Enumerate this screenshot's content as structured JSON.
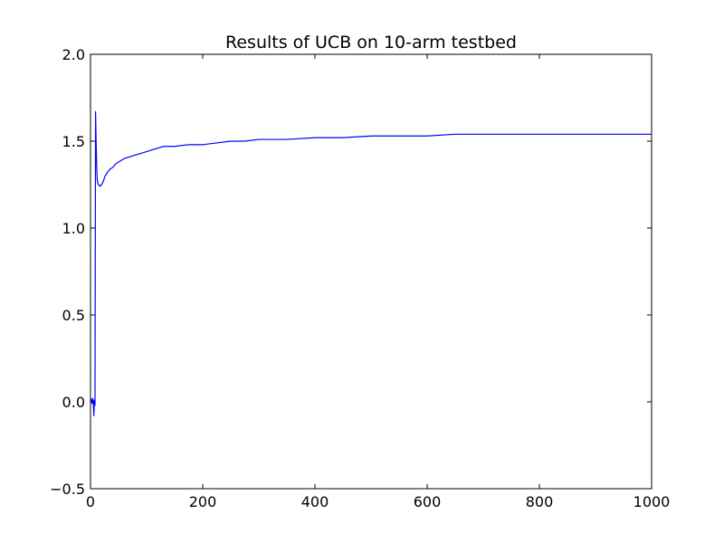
{
  "chart_data": {
    "type": "line",
    "title": "Results of UCB on 10-arm testbed",
    "xlabel": "",
    "ylabel": "",
    "xlim": [
      0,
      1000
    ],
    "ylim": [
      -0.5,
      2.0
    ],
    "x_ticks": [
      0,
      200,
      400,
      600,
      800,
      1000
    ],
    "y_ticks": [
      -0.5,
      0.0,
      0.5,
      1.0,
      1.5,
      2.0
    ],
    "x_tick_labels": [
      "0",
      "200",
      "400",
      "600",
      "800",
      "1000"
    ],
    "y_tick_labels": [
      "−0.5",
      "0.0",
      "0.5",
      "1.0",
      "1.5",
      "2.0"
    ],
    "grid": false,
    "legend": "none",
    "series": [
      {
        "color": "#0000ff",
        "x": [
          1,
          2,
          3,
          4,
          5,
          6,
          7,
          8,
          9,
          10,
          11,
          12,
          13,
          14,
          15,
          17,
          20,
          23,
          26,
          30,
          35,
          40,
          45,
          50,
          60,
          70,
          80,
          90,
          100,
          110,
          120,
          130,
          140,
          150,
          175,
          200,
          225,
          250,
          275,
          300,
          350,
          400,
          450,
          500,
          550,
          600,
          650,
          700,
          750,
          800,
          850,
          900,
          950,
          1000
        ],
        "y": [
          0.02,
          0.0,
          -0.01,
          0.02,
          0.0,
          -0.08,
          0.01,
          -0.02,
          1.67,
          1.5,
          1.35,
          1.28,
          1.26,
          1.25,
          1.25,
          1.24,
          1.25,
          1.27,
          1.3,
          1.32,
          1.34,
          1.35,
          1.37,
          1.38,
          1.4,
          1.41,
          1.42,
          1.43,
          1.44,
          1.45,
          1.46,
          1.47,
          1.47,
          1.47,
          1.48,
          1.48,
          1.49,
          1.5,
          1.5,
          1.51,
          1.51,
          1.52,
          1.52,
          1.53,
          1.53,
          1.53,
          1.54,
          1.54,
          1.54,
          1.54,
          1.54,
          1.54,
          1.54,
          1.54
        ]
      }
    ]
  }
}
